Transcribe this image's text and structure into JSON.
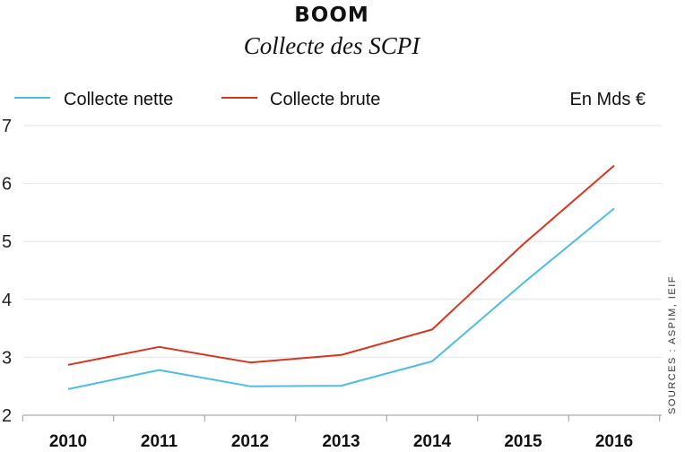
{
  "chart_data": {
    "type": "line",
    "title": "BOOM",
    "subtitle": "Collecte des SCPI",
    "unit": "En Mds €",
    "source": "SOURCES : ASPIM, IEIF",
    "x": [
      "2010",
      "2011",
      "2012",
      "2013",
      "2014",
      "2015",
      "2016"
    ],
    "series": [
      {
        "name": "Collecte nette",
        "color": "#4dbde3",
        "values": [
          2.45,
          2.78,
          2.5,
          2.51,
          2.93,
          4.28,
          5.57
        ]
      },
      {
        "name": "Collecte brute",
        "color": "#d9341e",
        "values": [
          2.87,
          3.18,
          2.91,
          3.04,
          3.48,
          4.95,
          6.31
        ]
      }
    ],
    "ylim": [
      2,
      7
    ],
    "yticks": [
      2,
      3,
      4,
      5,
      6,
      7
    ],
    "grid": true,
    "legend": "top-left"
  }
}
